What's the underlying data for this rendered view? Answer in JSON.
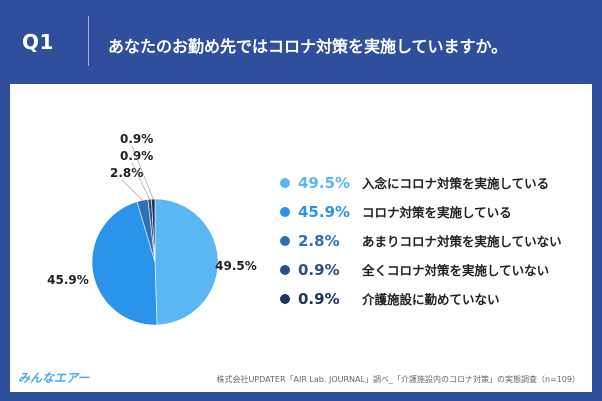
{
  "header": {
    "q_label": "Q1",
    "question": "あなたのお勤め先ではコロナ対策を実施していますか。"
  },
  "chart_data": {
    "type": "pie",
    "title": "",
    "slices": [
      {
        "label": "入念にコロナ対策を実施している",
        "value": 49.5,
        "display": "49.5%",
        "color": "#5bb6f4"
      },
      {
        "label": "コロナ対策を実施している",
        "value": 45.9,
        "display": "45.9%",
        "color": "#2a94ea"
      },
      {
        "label": "あまりコロナ対策を実施していない",
        "value": 2.8,
        "display": "2.8%",
        "color": "#2f6fb4"
      },
      {
        "label": "全くコロナ対策を実施していない",
        "value": 0.9,
        "display": "0.9%",
        "color": "#2a4f86"
      },
      {
        "label": "介護施設に勤めていない",
        "value": 0.9,
        "display": "0.9%",
        "color": "#1d355e"
      }
    ],
    "legend_position": "right"
  },
  "footer": {
    "logo": "みんなエアー",
    "source": "株式会社UPDATER「AIR Lab. JOURNAL」調べ_「介護施設内のコロナ対策」の実態調査（n=109）"
  },
  "colors": {
    "background": "#2f4f9d",
    "panel": "#ffffff"
  }
}
